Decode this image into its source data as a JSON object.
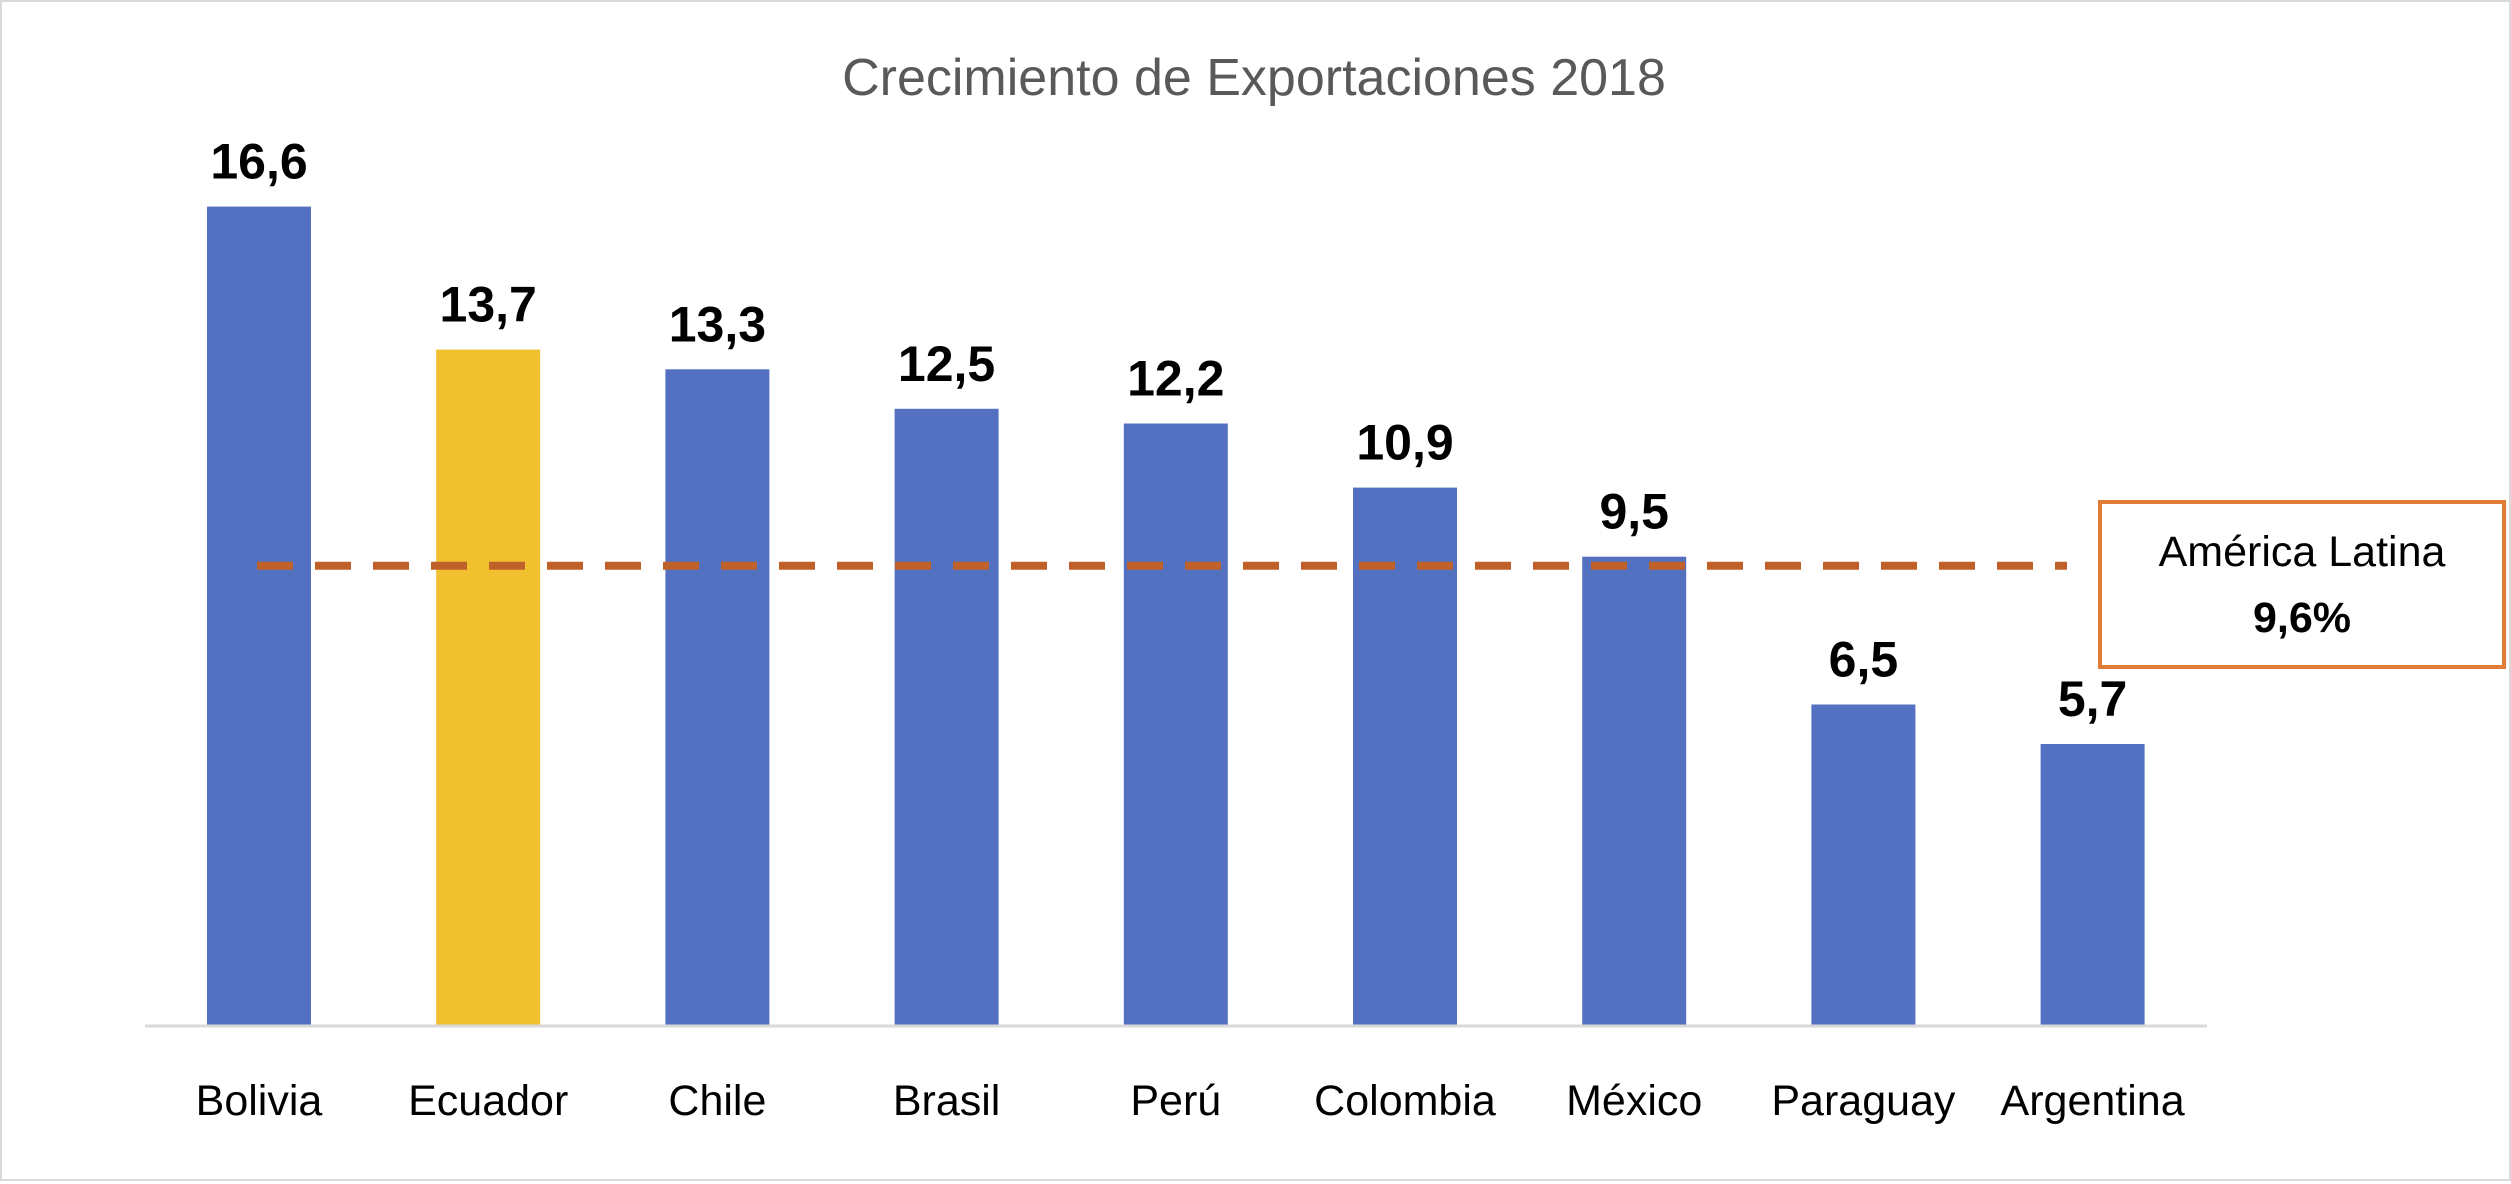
{
  "chart_data": {
    "type": "bar",
    "title": "Crecimiento de Exportaciones 2018",
    "categories": [
      "Bolivia",
      "Ecuador",
      "Chile",
      "Brasil",
      "Perú",
      "Colombia",
      "México",
      "Paraguay",
      "Argentina"
    ],
    "values": [
      16.6,
      13.7,
      13.3,
      12.5,
      12.2,
      10.9,
      9.5,
      6.5,
      5.7
    ],
    "value_labels": [
      "16,6",
      "13,7",
      "13,3",
      "12,5",
      "12,2",
      "10,9",
      "9,5",
      "6,5",
      "5,7"
    ],
    "highlight_category": "Ecuador",
    "ylim": [
      0,
      18
    ],
    "grid": false,
    "reference_line": {
      "value": 9.6,
      "label": "América Latina",
      "value_label": "9,6%",
      "style": "dashed"
    },
    "colors": {
      "bar": "#5470c1",
      "highlight": "#f0c02e",
      "reference_line": "#c0612a",
      "annotation_border": "#e07c36",
      "title": "#595959",
      "axis": "#d9d9d9"
    }
  }
}
